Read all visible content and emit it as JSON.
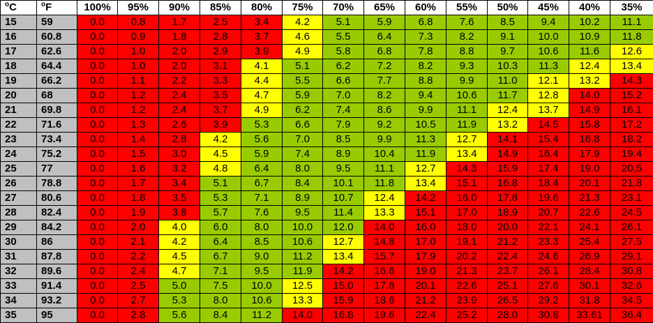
{
  "chart_data": {
    "type": "table",
    "headers": {
      "celsius_deg": "o",
      "celsius_unit": "C",
      "fahrenheit_deg": "o",
      "fahrenheit_unit": "F"
    },
    "columns": [
      "100%",
      "95%",
      "90%",
      "85%",
      "80%",
      "75%",
      "70%",
      "65%",
      "60%",
      "55%",
      "50%",
      "45%",
      "40%",
      "35%"
    ],
    "colors": {
      "red": "#ff0000",
      "yellow": "#ffff00",
      "green": "#99cc00"
    },
    "rows": [
      {
        "c": "15",
        "f": "59",
        "values": [
          "0.0",
          "0.8",
          "1.7",
          "2.5",
          "3.4",
          "4.2",
          "5.1",
          "5.9",
          "6.8",
          "7.6",
          "8.5",
          "9.4",
          "10.2",
          "11.1"
        ],
        "colors": [
          "red",
          "red",
          "red",
          "red",
          "red",
          "yellow",
          "green",
          "green",
          "green",
          "green",
          "green",
          "green",
          "green",
          "green"
        ]
      },
      {
        "c": "16",
        "f": "60.8",
        "values": [
          "0.0",
          "0.9",
          "1.8",
          "2.8",
          "3.7",
          "4.6",
          "5.5",
          "6.4",
          "7.3",
          "8.2",
          "9.1",
          "10.0",
          "10.9",
          "11.8"
        ],
        "colors": [
          "red",
          "red",
          "red",
          "red",
          "red",
          "yellow",
          "green",
          "green",
          "green",
          "green",
          "green",
          "green",
          "green",
          "green"
        ]
      },
      {
        "c": "17",
        "f": "62.6",
        "values": [
          "0.0",
          "1.0",
          "2.0",
          "2.9",
          "3.9",
          "4.9",
          "5.8",
          "6.8",
          "7.8",
          "8.8",
          "9.7",
          "10.6",
          "11.6",
          "12.6"
        ],
        "colors": [
          "red",
          "red",
          "red",
          "red",
          "red",
          "yellow",
          "green",
          "green",
          "green",
          "green",
          "green",
          "green",
          "green",
          "yellow"
        ]
      },
      {
        "c": "18",
        "f": "64.4",
        "values": [
          "0.0",
          "1.0",
          "2.0",
          "3.1",
          "4.1",
          "5.1",
          "6.2",
          "7.2",
          "8.2",
          "9.3",
          "10.3",
          "11.3",
          "12.4",
          "13.4"
        ],
        "colors": [
          "red",
          "red",
          "red",
          "red",
          "yellow",
          "green",
          "green",
          "green",
          "green",
          "green",
          "green",
          "green",
          "yellow",
          "yellow"
        ]
      },
      {
        "c": "19",
        "f": "66.2",
        "values": [
          "0.0",
          "1.1",
          "2.2",
          "3.3",
          "4.4",
          "5.5",
          "6.6",
          "7.7",
          "8.8",
          "9.9",
          "11.0",
          "12.1",
          "13.2",
          "14.3"
        ],
        "colors": [
          "red",
          "red",
          "red",
          "red",
          "yellow",
          "green",
          "green",
          "green",
          "green",
          "green",
          "green",
          "yellow",
          "yellow",
          "red"
        ]
      },
      {
        "c": "20",
        "f": "68",
        "values": [
          "0.0",
          "1.2",
          "2.4",
          "3.5",
          "4.7",
          "5.9",
          "7.0",
          "8.2",
          "9.4",
          "10.6",
          "11.7",
          "12.8",
          "14.0",
          "15.2"
        ],
        "colors": [
          "red",
          "red",
          "red",
          "red",
          "yellow",
          "green",
          "green",
          "green",
          "green",
          "green",
          "green",
          "yellow",
          "red",
          "red"
        ]
      },
      {
        "c": "21",
        "f": "69.8",
        "values": [
          "0.0",
          "1.2",
          "2.4",
          "3.7",
          "4.9",
          "6.2",
          "7.4",
          "8.6",
          "9.9",
          "11.1",
          "12.4",
          "13.7",
          "14.9",
          "16.1"
        ],
        "colors": [
          "red",
          "red",
          "red",
          "red",
          "yellow",
          "green",
          "green",
          "green",
          "green",
          "green",
          "yellow",
          "yellow",
          "red",
          "red"
        ]
      },
      {
        "c": "22",
        "f": "71.6",
        "values": [
          "0.0",
          "1.3",
          "2.6",
          "3.9",
          "5.3",
          "6.6",
          "7.9",
          "9.2",
          "10.5",
          "11.9",
          "13.2",
          "14.5",
          "15.8",
          "17.2"
        ],
        "colors": [
          "red",
          "red",
          "red",
          "red",
          "green",
          "green",
          "green",
          "green",
          "green",
          "green",
          "yellow",
          "red",
          "red",
          "red"
        ]
      },
      {
        "c": "23",
        "f": "73.4",
        "values": [
          "0.0",
          "1.4",
          "2.8",
          "4.2",
          "5.6",
          "7.0",
          "8.5",
          "9.9",
          "11.3",
          "12.7",
          "14.1",
          "15.4",
          "16.8",
          "18.2"
        ],
        "colors": [
          "red",
          "red",
          "red",
          "yellow",
          "green",
          "green",
          "green",
          "green",
          "green",
          "yellow",
          "red",
          "red",
          "red",
          "red"
        ]
      },
      {
        "c": "24",
        "f": "75.2",
        "values": [
          "0.0",
          "1.5",
          "3.0",
          "4.5",
          "5.9",
          "7.4",
          "8.9",
          "10.4",
          "11.9",
          "13.4",
          "14.9",
          "16.4",
          "17.9",
          "19.4"
        ],
        "colors": [
          "red",
          "red",
          "red",
          "yellow",
          "green",
          "green",
          "green",
          "green",
          "green",
          "yellow",
          "red",
          "red",
          "red",
          "red"
        ]
      },
      {
        "c": "25",
        "f": "77",
        "values": [
          "0.0",
          "1.6",
          "3.2",
          "4.8",
          "6.4",
          "8.0",
          "9.5",
          "11.1",
          "12.7",
          "14.3",
          "15.9",
          "17.4",
          "19.0",
          "20.5"
        ],
        "colors": [
          "red",
          "red",
          "red",
          "yellow",
          "green",
          "green",
          "green",
          "green",
          "yellow",
          "red",
          "red",
          "red",
          "red",
          "red"
        ]
      },
      {
        "c": "26",
        "f": "78.8",
        "values": [
          "0.0",
          "1.7",
          "3.4",
          "5.1",
          "6.7",
          "8.4",
          "10.1",
          "11.8",
          "13.4",
          "15.1",
          "16.8",
          "18.4",
          "20.1",
          "21.8"
        ],
        "colors": [
          "red",
          "red",
          "red",
          "green",
          "green",
          "green",
          "green",
          "green",
          "yellow",
          "red",
          "red",
          "red",
          "red",
          "red"
        ]
      },
      {
        "c": "27",
        "f": "80.6",
        "values": [
          "0.0",
          "1.8",
          "3.5",
          "5.3",
          "7.1",
          "8.9",
          "10.7",
          "12.4",
          "14.2",
          "16.0",
          "17.8",
          "19.6",
          "21.3",
          "23.1"
        ],
        "colors": [
          "red",
          "red",
          "red",
          "green",
          "green",
          "green",
          "green",
          "yellow",
          "red",
          "red",
          "red",
          "red",
          "red",
          "red"
        ]
      },
      {
        "c": "28",
        "f": "82.4",
        "values": [
          "0.0",
          "1.9",
          "3.8",
          "5.7",
          "7.6",
          "9.5",
          "11.4",
          "13.3",
          "15.1",
          "17.0",
          "18.9",
          "20.7",
          "22.6",
          "24.5"
        ],
        "colors": [
          "red",
          "red",
          "red",
          "green",
          "green",
          "green",
          "green",
          "yellow",
          "red",
          "red",
          "red",
          "red",
          "red",
          "red"
        ]
      },
      {
        "c": "29",
        "f": "84.2",
        "values": [
          "0.0",
          "2.0",
          "4.0",
          "6.0",
          "8.0",
          "10.0",
          "12.0",
          "14.0",
          "16.0",
          "18.0",
          "20.0",
          "22.1",
          "24.1",
          "26.1"
        ],
        "colors": [
          "red",
          "red",
          "yellow",
          "green",
          "green",
          "green",
          "green",
          "red",
          "red",
          "red",
          "red",
          "red",
          "red",
          "red"
        ]
      },
      {
        "c": "30",
        "f": "86",
        "values": [
          "0.0",
          "2.1",
          "4.2",
          "6.4",
          "8.5",
          "10.6",
          "12.7",
          "14.8",
          "17.0",
          "19.1",
          "21.2",
          "23.3",
          "25.4",
          "27.5"
        ],
        "colors": [
          "red",
          "red",
          "yellow",
          "green",
          "green",
          "green",
          "yellow",
          "red",
          "red",
          "red",
          "red",
          "red",
          "red",
          "red"
        ]
      },
      {
        "c": "31",
        "f": "87.8",
        "values": [
          "0.0",
          "2.2",
          "4.5",
          "6.7",
          "9.0",
          "11.2",
          "13.4",
          "15.7",
          "17.9",
          "20.2",
          "22.4",
          "24.6",
          "26.9",
          "29.1"
        ],
        "colors": [
          "red",
          "red",
          "yellow",
          "green",
          "green",
          "green",
          "yellow",
          "red",
          "red",
          "red",
          "red",
          "red",
          "red",
          "red"
        ]
      },
      {
        "c": "32",
        "f": "89.6",
        "values": [
          "0.0",
          "2.4",
          "4.7",
          "7.1",
          "9.5",
          "11.9",
          "14.2",
          "16.6",
          "19.0",
          "21.3",
          "23.7",
          "26.1",
          "28.4",
          "30.8"
        ],
        "colors": [
          "red",
          "red",
          "yellow",
          "green",
          "green",
          "green",
          "red",
          "red",
          "red",
          "red",
          "red",
          "red",
          "red",
          "red"
        ]
      },
      {
        "c": "33",
        "f": "91.4",
        "values": [
          "0.0",
          "2.5",
          "5.0",
          "7.5",
          "10.0",
          "12.5",
          "15.0",
          "17.6",
          "20.1",
          "22.6",
          "25.1",
          "27.6",
          "30.1",
          "32.6"
        ],
        "colors": [
          "red",
          "red",
          "green",
          "green",
          "green",
          "yellow",
          "red",
          "red",
          "red",
          "red",
          "red",
          "red",
          "red",
          "red"
        ]
      },
      {
        "c": "34",
        "f": "93.2",
        "values": [
          "0.0",
          "2.7",
          "5.3",
          "8.0",
          "10.6",
          "13.3",
          "15.9",
          "18.6",
          "21.2",
          "23.9",
          "26.5",
          "29.2",
          "31.8",
          "34.5"
        ],
        "colors": [
          "red",
          "red",
          "green",
          "green",
          "green",
          "yellow",
          "red",
          "red",
          "red",
          "red",
          "red",
          "red",
          "red",
          "red"
        ]
      },
      {
        "c": "35",
        "f": "95",
        "values": [
          "0.0",
          "2.8",
          "5.6",
          "8.4",
          "11.2",
          "14.0",
          "16.8",
          "19.6",
          "22.4",
          "25.2",
          "28.0",
          "30.8",
          "33.61",
          "36.4"
        ],
        "colors": [
          "red",
          "red",
          "green",
          "green",
          "green",
          "red",
          "red",
          "red",
          "red",
          "red",
          "red",
          "red",
          "red",
          "red"
        ]
      }
    ]
  }
}
